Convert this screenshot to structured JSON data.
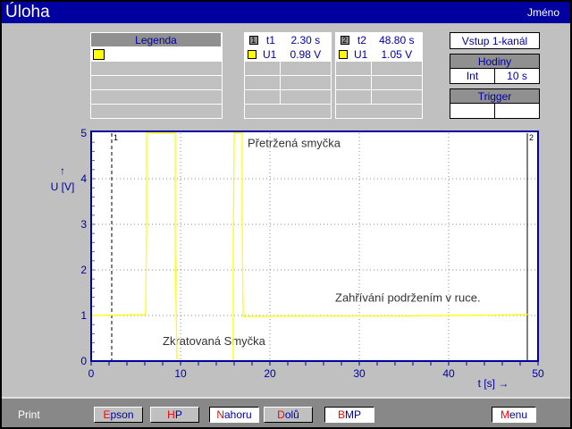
{
  "header": {
    "title": "Úloha",
    "name": "Jméno"
  },
  "legend": {
    "title": "Legenda",
    "color": "#ffff00"
  },
  "cursor1": {
    "id": "1",
    "t_label": "t1",
    "t_value": "2.30 s",
    "u_label": "U1",
    "u_value": "0.98 V"
  },
  "cursor2": {
    "id": "2",
    "t_label": "t2",
    "t_value": "48.80 s",
    "u_label": "U1",
    "u_value": "1.05 V"
  },
  "input": {
    "label": "Vstup 1-kanál"
  },
  "clock": {
    "title": "Hodiny",
    "source": "Int",
    "period": "10 s"
  },
  "trigger": {
    "title": "Trigger"
  },
  "footer": {
    "print": "Print",
    "buttons": [
      {
        "hot": "E",
        "rest": "pson"
      },
      {
        "hot": "H",
        "rest": "P"
      },
      {
        "hot": "N",
        "rest": "ahoru"
      },
      {
        "hot": "D",
        "rest": "olů"
      },
      {
        "hot": "B",
        "rest": "MP"
      },
      {
        "hot": "M",
        "rest": "enu"
      }
    ]
  },
  "chart_data": {
    "type": "line",
    "xlabel": "t [s] →",
    "ylabel": "U [V]",
    "ylabel_arrow": "↑",
    "xlim": [
      0,
      50
    ],
    "ylim": [
      0,
      5
    ],
    "xticks": [
      "0",
      "10",
      "20",
      "30",
      "40",
      "50"
    ],
    "yticks": [
      "0",
      "1",
      "2",
      "3",
      "4",
      "5"
    ],
    "grid": true,
    "series": [
      {
        "color": "#ffff00",
        "x": [
          0,
          6.1,
          6.2,
          6.2,
          9.4,
          9.4,
          9.6,
          15.9,
          15.9,
          16.0,
          16.9,
          16.9,
          17.0,
          25,
          35,
          45,
          49
        ],
        "y": [
          1.0,
          1.02,
          3.0,
          5,
          5,
          2.5,
          0,
          0,
          2.5,
          5,
          5,
          3.0,
          0.98,
          0.99,
          0.99,
          1.01,
          1.02
        ]
      }
    ],
    "cursors": [
      {
        "label": "1",
        "t": 2.3
      },
      {
        "label": "2",
        "t": 48.8
      }
    ],
    "annotations": [
      {
        "text": "Přetržená smyčka",
        "x": 17.5,
        "y": 4.7
      },
      {
        "text": "Zahřívání podržením v ruce.",
        "x": 27.3,
        "y": 1.3
      },
      {
        "text": "Zkratovaná Smyčka",
        "x": 8,
        "y": 0.35
      }
    ]
  }
}
